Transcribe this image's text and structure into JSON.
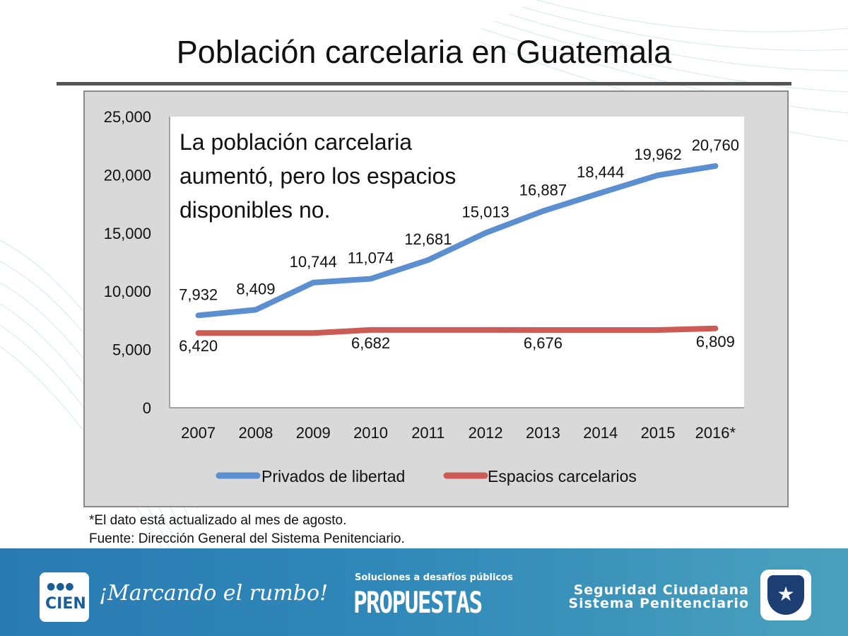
{
  "title": "Población carcelaria en Guatemala",
  "notes": [
    "*El dato está actualizado al mes de agosto.",
    "Fuente: Dirección General del Sistema Penitenciario."
  ],
  "footer": {
    "logo_dots": "●●●",
    "logo_word": "CIEN",
    "slogan": "¡Marcando el rumbo!",
    "soluciones": "Soluciones a desafíos públicos",
    "propuestas": "PROPUESTAS",
    "line1": "Seguridad Ciudadana",
    "line2": "Sistema Penitenciario",
    "shield_icon": "star-shield-icon"
  },
  "chart_data": {
    "type": "line",
    "title": "Población carcelaria en Guatemala",
    "annotation": [
      "La población carcelaria",
      "aumentó, pero los espacios",
      "disponibles no."
    ],
    "categories": [
      "2007",
      "2008",
      "2009",
      "2010",
      "2011",
      "2012",
      "2013",
      "2014",
      "2015",
      "2016*"
    ],
    "ylim": [
      0,
      25000
    ],
    "yticks": [
      0,
      5000,
      10000,
      15000,
      20000,
      25000
    ],
    "ytick_labels": [
      "0",
      "5,000",
      "10,000",
      "15,000",
      "20,000",
      "25,000"
    ],
    "legend_position": "bottom",
    "series": [
      {
        "name": "Privados de libertad",
        "color": "#5b8fd0",
        "values": [
          7932,
          8409,
          10744,
          11074,
          12681,
          15013,
          16887,
          18444,
          19962,
          20760
        ],
        "labels": [
          "7,932",
          "8,409",
          "10,744",
          "11,074",
          "12,681",
          "15,013",
          "16,887",
          "18,444",
          "19,962",
          "20,760"
        ]
      },
      {
        "name": "Espacios carcelarios",
        "color": "#cc5b55",
        "values": [
          6420,
          6420,
          6420,
          6682,
          6682,
          6682,
          6676,
          6676,
          6676,
          6809
        ],
        "labels": [
          "6,420",
          "",
          "",
          "6,682",
          "",
          "",
          "6,676",
          "",
          "",
          "6,809"
        ]
      }
    ]
  }
}
